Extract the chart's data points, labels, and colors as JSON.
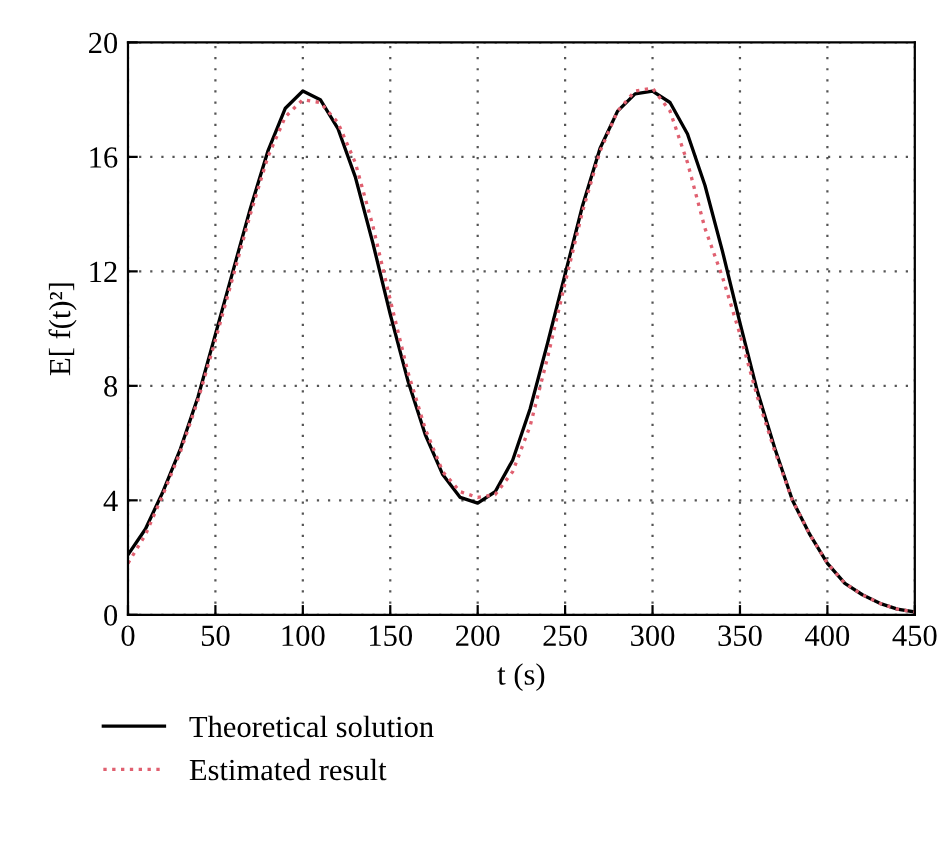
{
  "chart_data": {
    "type": "line",
    "xlabel": "t (s)",
    "ylabel": "E[ f(t)²]",
    "xlim": [
      0,
      450
    ],
    "ylim": [
      0,
      20
    ],
    "xticks": [
      0,
      50,
      100,
      150,
      200,
      250,
      300,
      350,
      400,
      450
    ],
    "yticks": [
      0,
      4,
      8,
      12,
      16,
      20
    ],
    "grid": true,
    "legend": "bottom",
    "x": [
      0,
      10,
      20,
      30,
      40,
      50,
      60,
      70,
      80,
      90,
      100,
      110,
      120,
      130,
      140,
      150,
      160,
      170,
      180,
      190,
      200,
      210,
      220,
      230,
      240,
      250,
      260,
      270,
      280,
      290,
      300,
      310,
      320,
      330,
      340,
      350,
      360,
      370,
      380,
      390,
      400,
      410,
      420,
      430,
      440,
      450
    ],
    "series": [
      {
        "name": "Theoretical solution",
        "color": "#000000",
        "line_style": "solid",
        "values": [
          2.1,
          3.0,
          4.3,
          5.8,
          7.6,
          9.8,
          12.0,
          14.2,
          16.2,
          17.7,
          18.3,
          18.0,
          17.0,
          15.3,
          13.0,
          10.5,
          8.2,
          6.3,
          4.9,
          4.1,
          3.9,
          4.3,
          5.4,
          7.2,
          9.5,
          11.9,
          14.3,
          16.3,
          17.6,
          18.2,
          18.3,
          17.9,
          16.8,
          15.0,
          12.7,
          10.2,
          7.8,
          5.8,
          4.0,
          2.8,
          1.8,
          1.1,
          0.7,
          0.4,
          0.2,
          0.1
        ]
      },
      {
        "name": "Estimated result",
        "color": "#e06070",
        "line_style": "dotted",
        "values": [
          1.8,
          2.8,
          4.2,
          5.7,
          7.5,
          9.6,
          11.8,
          14.0,
          16.0,
          17.4,
          18.0,
          17.9,
          17.2,
          15.8,
          13.6,
          11.0,
          8.5,
          6.5,
          5.0,
          4.3,
          4.1,
          4.2,
          5.0,
          6.6,
          9.0,
          11.6,
          14.1,
          16.2,
          17.6,
          18.3,
          18.4,
          17.6,
          15.8,
          13.5,
          11.8,
          9.8,
          7.6,
          5.7,
          4.0,
          2.8,
          1.8,
          1.1,
          0.7,
          0.4,
          0.2,
          0.1
        ]
      }
    ]
  }
}
